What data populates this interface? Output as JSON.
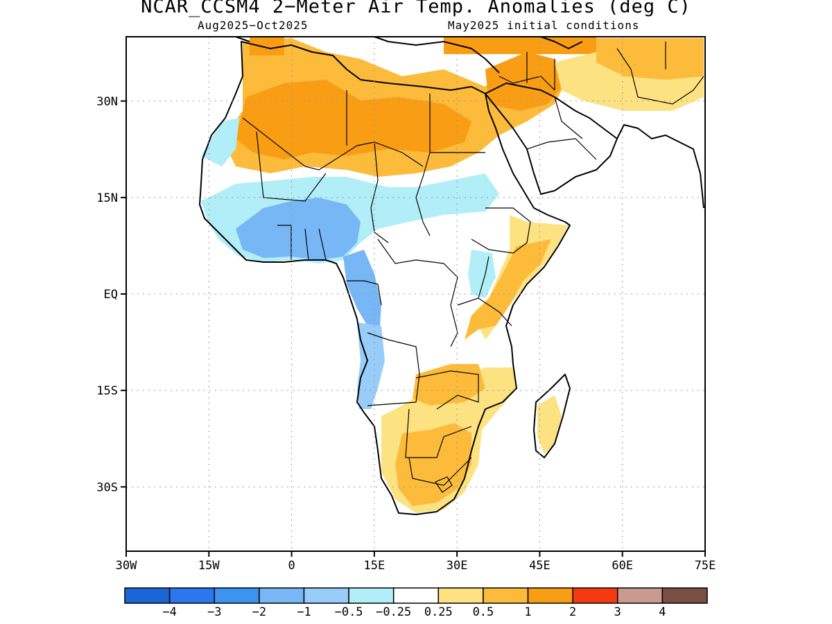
{
  "header": {
    "title": "NCAR_CCSM4 2−Meter Air Temp. Anomalies (deg C)",
    "period": "Aug2025−Oct2025",
    "init": "May2025 initial conditions"
  },
  "map": {
    "lat_labels": [
      "30N",
      "15N",
      "EQ",
      "15S",
      "30S"
    ],
    "lon_labels": [
      "30W",
      "15W",
      "0",
      "15E",
      "30E",
      "45E",
      "60E",
      "75E"
    ],
    "lat_values": [
      30,
      15,
      0,
      -15,
      -30
    ],
    "lon_values": [
      -30,
      -15,
      0,
      15,
      30,
      45,
      60,
      75
    ],
    "extent": {
      "lon_min": -30,
      "lon_max": 75,
      "lat_min": -40,
      "lat_max": 40
    }
  },
  "legend": {
    "colors": [
      "#1a66d6",
      "#2a77ee",
      "#3d93f0",
      "#78b7f5",
      "#97cdf8",
      "#b2eef7",
      "#ffffff",
      "#fde282",
      "#fcbb3a",
      "#f99d14",
      "#f53a12",
      "#c99b8f",
      "#7a4e43"
    ],
    "labels": [
      "−4",
      "−3",
      "−2",
      "−1",
      "−0.5",
      "−0.25",
      "0.25",
      "0.5",
      "1",
      "2",
      "3",
      "4"
    ]
  },
  "palette": {
    "light_blue": "#b2eef7",
    "mid_blue": "#97cdf8",
    "blue": "#78b7f5",
    "yellow": "#fde282",
    "light_orange": "#fcbb3a",
    "orange": "#f99d14"
  }
}
